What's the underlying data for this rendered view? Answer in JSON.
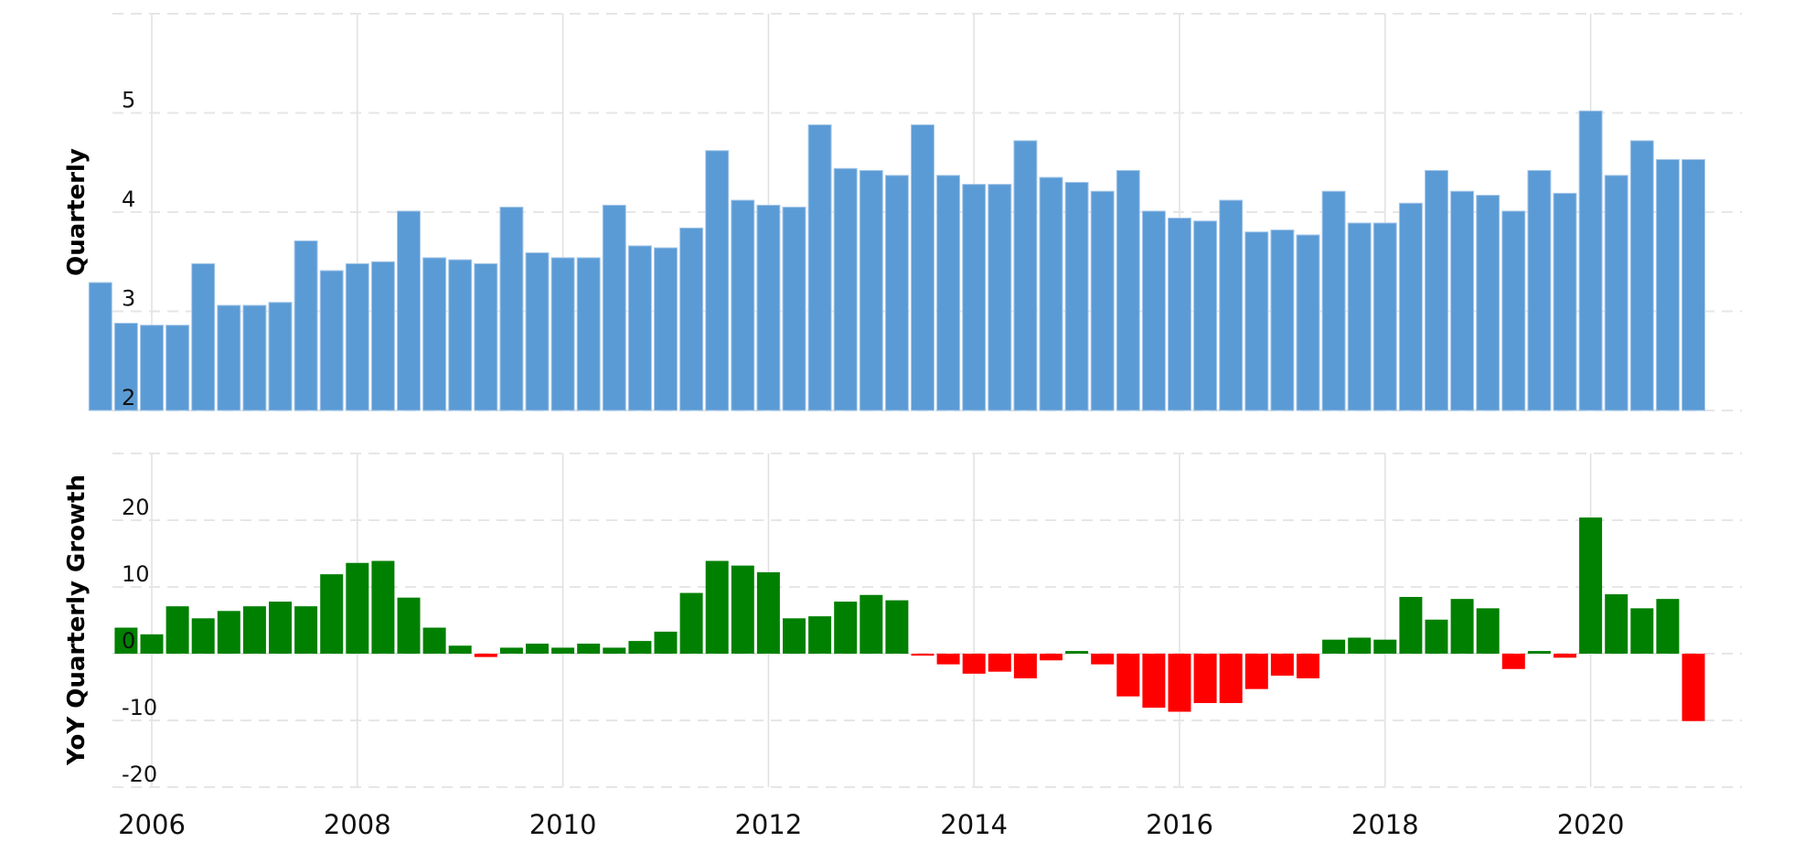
{
  "chart_data": [
    {
      "type": "bar",
      "ylabel": "Quarterly",
      "xlabel": "",
      "ylim": [
        2,
        6
      ],
      "yticks": [
        "2",
        "3",
        "4",
        "5"
      ],
      "grid": true,
      "color": "#5b9bd5",
      "x": [
        "2005-Q3",
        "2005-Q4",
        "2006-Q1",
        "2006-Q2",
        "2006-Q3",
        "2006-Q4",
        "2007-Q1",
        "2007-Q2",
        "2007-Q3",
        "2007-Q4",
        "2008-Q1",
        "2008-Q2",
        "2008-Q3",
        "2008-Q4",
        "2009-Q1",
        "2009-Q2",
        "2009-Q3",
        "2009-Q4",
        "2010-Q1",
        "2010-Q2",
        "2010-Q3",
        "2010-Q4",
        "2011-Q1",
        "2011-Q2",
        "2011-Q3",
        "2011-Q4",
        "2012-Q1",
        "2012-Q2",
        "2012-Q3",
        "2012-Q4",
        "2013-Q1",
        "2013-Q2",
        "2013-Q3",
        "2013-Q4",
        "2014-Q1",
        "2014-Q2",
        "2014-Q3",
        "2014-Q4",
        "2015-Q1",
        "2015-Q2",
        "2015-Q3",
        "2015-Q4",
        "2016-Q1",
        "2016-Q2",
        "2016-Q3",
        "2016-Q4",
        "2017-Q1",
        "2017-Q2",
        "2017-Q3",
        "2017-Q4",
        "2018-Q1",
        "2018-Q2",
        "2018-Q3",
        "2018-Q4",
        "2019-Q1",
        "2019-Q2",
        "2019-Q3",
        "2019-Q4",
        "2020-Q1",
        "2020-Q2",
        "2020-Q3",
        "2020-Q4",
        "2021-Q1"
      ],
      "values": [
        3.29,
        2.88,
        2.86,
        2.86,
        3.48,
        3.06,
        3.06,
        3.09,
        3.71,
        3.41,
        3.48,
        3.5,
        4.01,
        3.54,
        3.52,
        3.48,
        4.05,
        3.59,
        3.54,
        3.54,
        4.07,
        3.66,
        3.64,
        3.84,
        4.62,
        4.12,
        4.07,
        4.05,
        4.88,
        4.44,
        4.42,
        4.37,
        4.88,
        4.37,
        4.28,
        4.28,
        4.72,
        4.35,
        4.3,
        4.21,
        4.42,
        4.01,
        3.94,
        3.91,
        4.12,
        3.8,
        3.82,
        3.77,
        4.21,
        3.89,
        3.89,
        4.09,
        4.42,
        4.21,
        4.17,
        4.01,
        4.42,
        4.19,
        5.02,
        4.37,
        4.72,
        4.53,
        4.53
      ]
    },
    {
      "type": "bar",
      "ylabel": "YoY Quarterly Growth",
      "xlabel": "",
      "ylim": [
        -20,
        30
      ],
      "yticks": [
        "-20",
        "-10",
        "0",
        "10",
        "20"
      ],
      "xticks": [
        "2006",
        "2008",
        "2010",
        "2012",
        "2014",
        "2016",
        "2018",
        "2020"
      ],
      "grid": true,
      "positive_color": "#008000",
      "negative_color": "#ff0000",
      "x": [
        "2005-Q4",
        "2006-Q1",
        "2006-Q2",
        "2006-Q3",
        "2006-Q4",
        "2007-Q1",
        "2007-Q2",
        "2007-Q3",
        "2007-Q4",
        "2008-Q1",
        "2008-Q2",
        "2008-Q3",
        "2008-Q4",
        "2009-Q1",
        "2009-Q2",
        "2009-Q3",
        "2009-Q4",
        "2010-Q1",
        "2010-Q2",
        "2010-Q3",
        "2010-Q4",
        "2011-Q1",
        "2011-Q2",
        "2011-Q3",
        "2011-Q4",
        "2012-Q1",
        "2012-Q2",
        "2012-Q3",
        "2012-Q4",
        "2013-Q1",
        "2013-Q2",
        "2013-Q3",
        "2013-Q4",
        "2014-Q1",
        "2014-Q2",
        "2014-Q3",
        "2014-Q4",
        "2015-Q1",
        "2015-Q2",
        "2015-Q3",
        "2015-Q4",
        "2016-Q1",
        "2016-Q2",
        "2016-Q3",
        "2016-Q4",
        "2017-Q1",
        "2017-Q2",
        "2017-Q3",
        "2017-Q4",
        "2018-Q1",
        "2018-Q2",
        "2018-Q3",
        "2018-Q4",
        "2019-Q1",
        "2019-Q2",
        "2019-Q3",
        "2019-Q4",
        "2020-Q1",
        "2020-Q2",
        "2020-Q3",
        "2020-Q4",
        "2021-Q1"
      ],
      "values": [
        3.9,
        2.9,
        7.1,
        5.3,
        6.4,
        7.1,
        7.8,
        7.1,
        11.9,
        13.6,
        13.9,
        8.4,
        3.9,
        1.2,
        -0.5,
        0.9,
        1.5,
        0.9,
        1.5,
        0.9,
        1.9,
        3.3,
        9.1,
        13.9,
        13.2,
        12.2,
        5.3,
        5.6,
        7.8,
        8.8,
        8.0,
        -0.3,
        -1.6,
        -3.0,
        -2.7,
        -3.7,
        -1.0,
        0.4,
        -1.6,
        -6.4,
        -8.1,
        -8.7,
        -7.4,
        -7.4,
        -5.3,
        -3.3,
        -3.7,
        2.1,
        2.4,
        2.1,
        8.5,
        5.1,
        8.2,
        6.8,
        -2.3,
        0.4,
        -0.6,
        20.4,
        8.9,
        6.8,
        8.2,
        -10.1
      ]
    }
  ]
}
